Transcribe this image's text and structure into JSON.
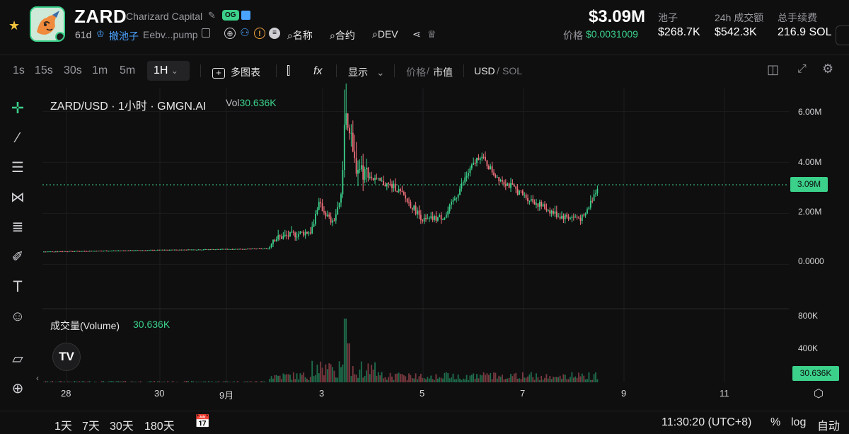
{
  "header": {
    "ticker": "ZARD",
    "full_name": "Charizard Capital",
    "og_badge": "OG",
    "age": "61d",
    "pool_action": "撤池子",
    "contract_short": "Eebv...pump",
    "links": [
      "名称",
      "合约",
      "DEV"
    ],
    "market_cap": "$3.09M",
    "price_label": "价格",
    "price_value": "$0.0031009",
    "stats": [
      {
        "label": "池子",
        "value": "$268.7K"
      },
      {
        "label": "24h 成交额",
        "value": "$542.3K"
      },
      {
        "label": "总手续费",
        "value": "216.9 SOL"
      }
    ]
  },
  "toolbar": {
    "timeframes": [
      "1s",
      "15s",
      "30s",
      "1m",
      "5m"
    ],
    "active_timeframe": "1H",
    "multi_chart": "多图表",
    "display": "显示",
    "price_label": "价格",
    "mcap_label": "市值",
    "usd_label": "USD",
    "sol_label": "SOL"
  },
  "chart": {
    "title": "ZARD/USD · 1小时 · GMGN.AI",
    "vol_prefix": "Vol",
    "vol_value": "30.636K",
    "volume_title": "成交量(Volume)",
    "volume_value": "30.636K",
    "price_axis": [
      "6.00M",
      "4.00M",
      "2.00M",
      "0.0000"
    ],
    "current_tag": "3.09M",
    "volume_axis": [
      "800K",
      "400K"
    ],
    "volume_tag": "30.636K",
    "x_labels": [
      "28",
      "30",
      "9月",
      "3",
      "5",
      "7",
      "9",
      "11"
    ],
    "logo": "TV"
  },
  "bottom": {
    "ranges": [
      "1天",
      "7天",
      "30天",
      "180天"
    ],
    "time": "11:30:20 (UTC+8)",
    "options": [
      "%",
      "log",
      "自动"
    ]
  },
  "colors": {
    "up": "#3bd18a",
    "down": "#f2707a",
    "accent": "#3bd18a"
  },
  "chart_data": {
    "type": "candlestick",
    "title": "ZARD/USD · 1小时 · GMGN.AI",
    "ylabel": "Market cap (USD)",
    "ylim": [
      -0.6,
      6.9
    ],
    "y_unit": "M",
    "x_ticks": [
      "28",
      "30",
      "9月",
      "3",
      "5",
      "7",
      "9",
      "11"
    ],
    "current_value": 3.09,
    "segments": [
      {
        "from": "28",
        "to": "9月2",
        "level": [
          0.5,
          0.62
        ]
      },
      {
        "from": "9月2",
        "to": "9月3",
        "level": [
          0.62,
          2.4
        ]
      },
      {
        "from": "9月3",
        "to": "9月4",
        "level": [
          2.4,
          6.9
        ]
      },
      {
        "from": "9月4",
        "to": "9月5",
        "level": [
          3.8,
          1.6
        ]
      },
      {
        "from": "9月5",
        "to": "9月6",
        "level": [
          1.6,
          4.5
        ]
      },
      {
        "from": "9月6",
        "to": "9月8",
        "level": [
          3.7,
          1.8
        ]
      },
      {
        "from": "9月8",
        "to": "now",
        "level": [
          1.8,
          3.09
        ]
      }
    ],
    "volume": {
      "peak": "800K",
      "current": 30.636
    }
  }
}
